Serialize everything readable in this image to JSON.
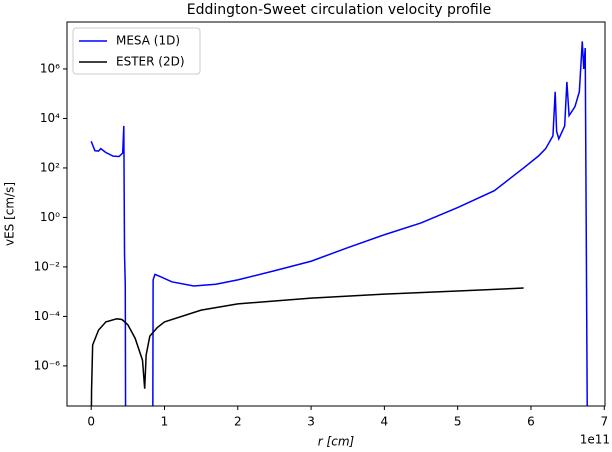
{
  "chart_data": {
    "type": "line",
    "title": "Eddington-Sweet circulation velocity profile",
    "xlabel": "r [cm]",
    "ylabel": "vES [cm/s]",
    "x_offset_label": "1e11",
    "xlim": [
      -0.33,
      7.01
    ],
    "xticks": [
      0,
      1,
      2,
      3,
      4,
      5,
      6,
      7
    ],
    "ylim": [
      2.4e-08,
      79000000.0
    ],
    "yscale": "log",
    "yticks": [
      {
        "value": 1e-06,
        "label": "10⁻⁶"
      },
      {
        "value": 0.0001,
        "label": "10⁻⁴"
      },
      {
        "value": 0.01,
        "label": "10⁻²"
      },
      {
        "value": 1,
        "label": "10⁰"
      },
      {
        "value": 100,
        "label": "10²"
      },
      {
        "value": 10000.0,
        "label": "10⁴"
      },
      {
        "value": 1000000.0,
        "label": "10⁶"
      }
    ],
    "legend": "upper left",
    "series": [
      {
        "name": "MESA (1D)",
        "color": "#0000ff",
        "x": [
          0.0,
          0.05,
          0.1,
          0.13,
          0.2,
          0.3,
          0.38,
          0.43,
          0.445,
          0.455,
          0.465,
          0.47,
          null,
          0.84,
          0.845,
          0.87,
          0.95,
          1.1,
          1.4,
          1.7,
          2.0,
          2.5,
          3.0,
          3.5,
          4.0,
          4.5,
          5.0,
          5.5,
          5.9,
          6.1,
          6.2,
          6.3,
          6.33,
          6.35,
          6.38,
          6.46,
          6.49,
          6.52,
          6.6,
          6.66,
          6.7,
          6.72,
          6.74,
          6.77
        ],
        "values": [
          1200,
          500,
          480,
          600,
          420,
          300,
          290,
          400,
          5000,
          0.03,
          0.002,
          1e-09,
          null,
          1e-09,
          0.003,
          0.005,
          0.004,
          0.0025,
          0.0017,
          0.002,
          0.003,
          0.007,
          0.017,
          0.06,
          0.2,
          0.6,
          2.5,
          12,
          100,
          300,
          600,
          2000,
          120000,
          3000,
          1500,
          5000,
          300000,
          13000,
          30000,
          120000,
          13000000,
          1000000,
          7000000,
          1e-09
        ]
      },
      {
        "name": "ESTER (2D)",
        "color": "#000000",
        "x": [
          0.0,
          0.005,
          0.02,
          0.1,
          0.2,
          0.35,
          0.42,
          0.5,
          0.6,
          0.7,
          0.73,
          0.75,
          0.8,
          0.9,
          1.0,
          1.5,
          2.0,
          3.0,
          4.0,
          5.0,
          5.9
        ],
        "values": [
          1e-09,
          1e-07,
          7e-06,
          2.8e-05,
          6e-05,
          8e-05,
          7.5e-05,
          4.6e-05,
          1.3e-05,
          1.7e-06,
          1.2e-07,
          2.8e-06,
          1.6e-05,
          3.5e-05,
          6e-05,
          0.00018,
          0.00032,
          0.00055,
          0.0008,
          0.00107,
          0.0014
        ]
      }
    ]
  }
}
